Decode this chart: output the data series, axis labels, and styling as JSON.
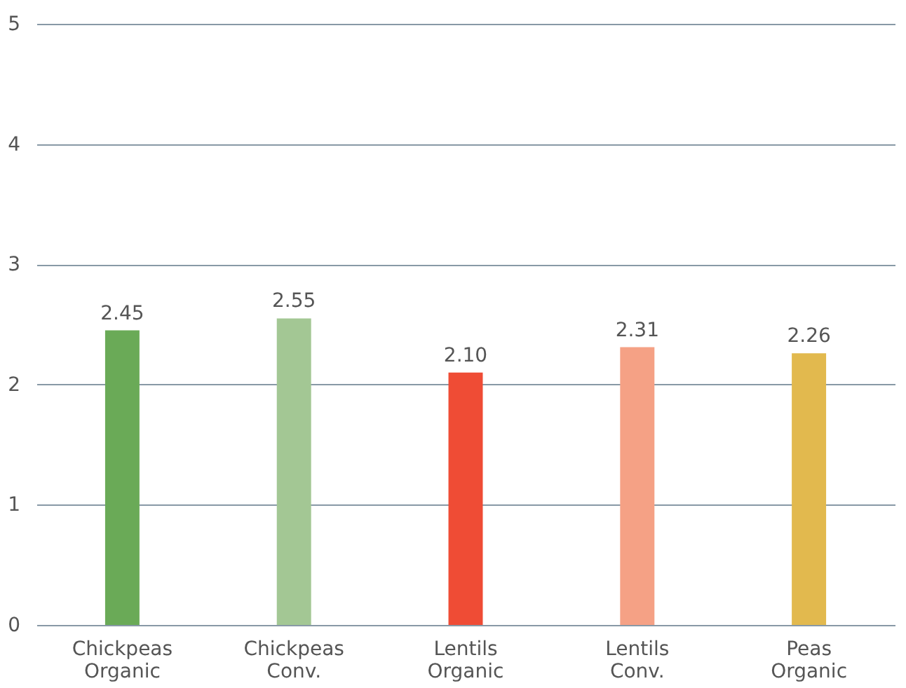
{
  "chart_data": {
    "type": "bar",
    "categories": [
      "Chickpeas\nOrganic",
      "Chickpeas\nConv.",
      "Lentils\nOrganic",
      "Lentils\nConv.",
      "Peas\nOrganic"
    ],
    "values": [
      2.45,
      2.55,
      2.1,
      2.31,
      2.26
    ],
    "value_labels": [
      "2.45",
      "2.55",
      "2.10",
      "2.31",
      "2.26"
    ],
    "colors": [
      "#6aaa57",
      "#a3c794",
      "#ef4c35",
      "#f5a185",
      "#e2b94e"
    ],
    "ylim": [
      0,
      5
    ],
    "yticks": [
      0,
      1,
      2,
      3,
      4,
      5
    ],
    "grid": "y"
  }
}
